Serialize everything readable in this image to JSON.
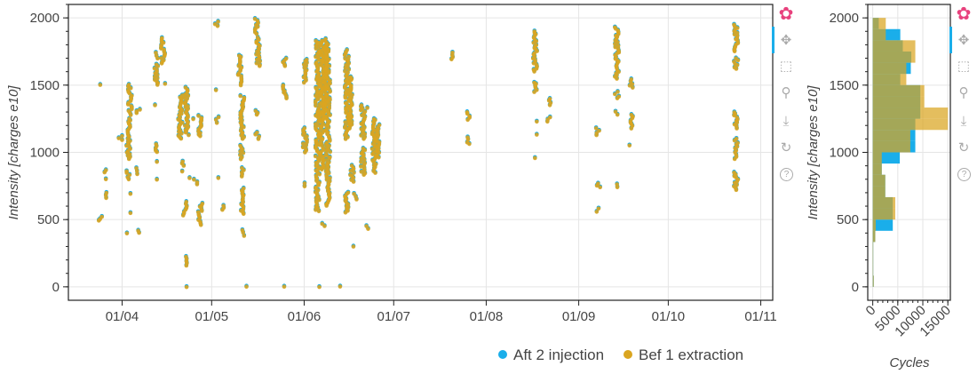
{
  "colors": {
    "series_a": "#1aaeea",
    "series_b": "#daa520"
  },
  "toolbar": {
    "tools": [
      "bokeh-logo",
      "pan",
      "box-zoom",
      "wheel-zoom",
      "save",
      "reset",
      "help"
    ]
  },
  "chart_data": [
    {
      "type": "scatter",
      "title": "",
      "xlabel": "",
      "ylabel": "Intensity [charges e10]",
      "x_unit": "days since 01/04",
      "x_tick_labels": [
        "01/04",
        "01/05",
        "01/06",
        "01/07",
        "01/08",
        "01/09",
        "01/10",
        "01/11"
      ],
      "x_tick_days": [
        0,
        30,
        61,
        91,
        122,
        153,
        183,
        214
      ],
      "xlim": [
        -18,
        218
      ],
      "y_ticks": [
        0,
        500,
        1000,
        1500,
        2000
      ],
      "ylim": [
        -100,
        2100
      ],
      "grid": true,
      "legend": {
        "placement": "bottom-right-outside",
        "entries": [
          "Aft 2 injection",
          "Bef 1 extraction"
        ]
      },
      "clusters_note": "[day, y_min, y_max]",
      "clusters": [
        [
          -7.1,
          490,
          520
        ],
        [
          -7.1,
          1500,
          1500
        ],
        [
          -5.7,
          660,
          700
        ],
        [
          -5.7,
          850,
          870
        ],
        [
          -5.7,
          800,
          800
        ],
        [
          -0.6,
          1090,
          1120
        ],
        [
          2.1,
          950,
          1250
        ],
        [
          2.1,
          800,
          860
        ],
        [
          2.1,
          400,
          400
        ],
        [
          2.1,
          550,
          550
        ],
        [
          2.7,
          1280,
          1500
        ],
        [
          2.7,
          690,
          690
        ],
        [
          5.4,
          840,
          880
        ],
        [
          5.4,
          400,
          420
        ],
        [
          5.4,
          1290,
          1320
        ],
        [
          11.3,
          1500,
          1650
        ],
        [
          11.3,
          1700,
          1740
        ],
        [
          11.3,
          1000,
          1060
        ],
        [
          11.3,
          930,
          930
        ],
        [
          11.3,
          800,
          800
        ],
        [
          11.3,
          1350,
          1350
        ],
        [
          13.7,
          1660,
          1850
        ],
        [
          13.7,
          1510,
          1510
        ],
        [
          19.5,
          1100,
          1420
        ],
        [
          21.5,
          1150,
          1480
        ],
        [
          20,
          900,
          930
        ],
        [
          20,
          860,
          860
        ],
        [
          21.1,
          530,
          630
        ],
        [
          21.1,
          160,
          220
        ],
        [
          21.1,
          0,
          0
        ],
        [
          22,
          1130,
          1150
        ],
        [
          23.2,
          1250,
          1250
        ],
        [
          23.2,
          810,
          810
        ],
        [
          24.5,
          760,
          800
        ],
        [
          26.2,
          1120,
          1270
        ],
        [
          26.2,
          460,
          620
        ],
        [
          31.8,
          1940,
          1970
        ],
        [
          31.8,
          1460,
          1460
        ],
        [
          31.8,
          810,
          810
        ],
        [
          31.8,
          1220,
          1260
        ],
        [
          33.6,
          570,
          600
        ],
        [
          39.5,
          1500,
          1720
        ],
        [
          40.2,
          1100,
          1420
        ],
        [
          40.2,
          540,
          730
        ],
        [
          40.2,
          380,
          420
        ],
        [
          40.2,
          950,
          1050
        ],
        [
          40.2,
          820,
          880
        ],
        [
          41,
          0,
          0
        ],
        [
          45.2,
          1880,
          1990
        ],
        [
          45.5,
          1640,
          1850
        ],
        [
          45.2,
          1280,
          1310
        ],
        [
          45.2,
          1100,
          1150
        ],
        [
          54.5,
          1640,
          1700
        ],
        [
          54.5,
          1400,
          1500
        ],
        [
          54.5,
          0,
          0
        ],
        [
          61.3,
          1520,
          1690
        ],
        [
          61.3,
          1000,
          1180
        ],
        [
          61.3,
          750,
          770
        ],
        [
          65.5,
          560,
          1830
        ],
        [
          67,
          870,
          1830
        ],
        [
          68,
          1250,
          1840
        ],
        [
          69,
          600,
          1800
        ],
        [
          67.5,
          450,
          470
        ],
        [
          66.5,
          0,
          0
        ],
        [
          73.2,
          0,
          0
        ],
        [
          75.3,
          1100,
          1760
        ],
        [
          76.5,
          1180,
          1560
        ],
        [
          75.3,
          550,
          700
        ],
        [
          77,
          780,
          900
        ],
        [
          77,
          300,
          300
        ],
        [
          78,
          650,
          690
        ],
        [
          80.7,
          1100,
          1350
        ],
        [
          80.7,
          830,
          1030
        ],
        [
          82.4,
          430,
          450
        ],
        [
          82.4,
          1330,
          1340
        ],
        [
          84.5,
          850,
          1250
        ],
        [
          85.5,
          960,
          1200
        ],
        [
          110.4,
          1690,
          1740
        ],
        [
          116.1,
          1240,
          1300
        ],
        [
          116.1,
          1060,
          1110
        ],
        [
          138.4,
          1600,
          1900
        ],
        [
          138.4,
          1450,
          1520
        ],
        [
          138.4,
          1230,
          1230
        ],
        [
          138.4,
          1130,
          1130
        ],
        [
          138.4,
          960,
          960
        ],
        [
          142.9,
          1350,
          1400
        ],
        [
          142.9,
          1230,
          1260
        ],
        [
          159.5,
          1130,
          1180
        ],
        [
          159.5,
          560,
          580
        ],
        [
          159.5,
          740,
          770
        ],
        [
          165.8,
          1550,
          1930
        ],
        [
          165.8,
          1400,
          1450
        ],
        [
          165.8,
          1280,
          1300
        ],
        [
          165.8,
          740,
          760
        ],
        [
          170.5,
          1480,
          1540
        ],
        [
          170.5,
          1180,
          1280
        ],
        [
          170.5,
          1050,
          1050
        ],
        [
          205.7,
          1750,
          1950
        ],
        [
          205.7,
          1620,
          1700
        ],
        [
          205.7,
          1180,
          1300
        ],
        [
          205.7,
          1000,
          1100
        ],
        [
          205.7,
          720,
          850
        ],
        [
          205.7,
          950,
          980
        ]
      ]
    },
    {
      "type": "bar",
      "orientation": "horizontal",
      "xlabel": "Cycles",
      "ylabel": "Intensity [charges e10]",
      "x_ticks": [
        0,
        5000,
        10000,
        15000
      ],
      "xlim": [
        -1000,
        15500
      ],
      "y_ticks": [
        0,
        500,
        1000,
        1500,
        2000
      ],
      "ylim": [
        -100,
        2100
      ],
      "bin_width": 83.33,
      "bin_starts": [
        0,
        83.33,
        166.67,
        250,
        333.33,
        416.67,
        500,
        583.33,
        666.67,
        750,
        833.33,
        916.67,
        1000,
        1083.33,
        1166.67,
        1250,
        1333.33,
        1416.67,
        1500,
        1583.33,
        1666.67,
        1750,
        1833.33,
        1916.67
      ],
      "series": [
        {
          "name": "Aft 2 injection",
          "values": [
            200,
            100,
            100,
            100,
            500,
            4000,
            4000,
            4000,
            2500,
            2500,
            1800,
            5400,
            8500,
            8500,
            8500,
            9500,
            9500,
            9500,
            5500,
            7600,
            7700,
            6000,
            5500,
            1200
          ]
        },
        {
          "name": "Bef 1 extraction",
          "values": [
            200,
            100,
            100,
            100,
            500,
            600,
            4500,
            4500,
            2500,
            2500,
            1800,
            1800,
            7500,
            7500,
            15000,
            15000,
            10300,
            10300,
            6700,
            6700,
            8500,
            8500,
            2600,
            2600
          ]
        }
      ]
    }
  ]
}
